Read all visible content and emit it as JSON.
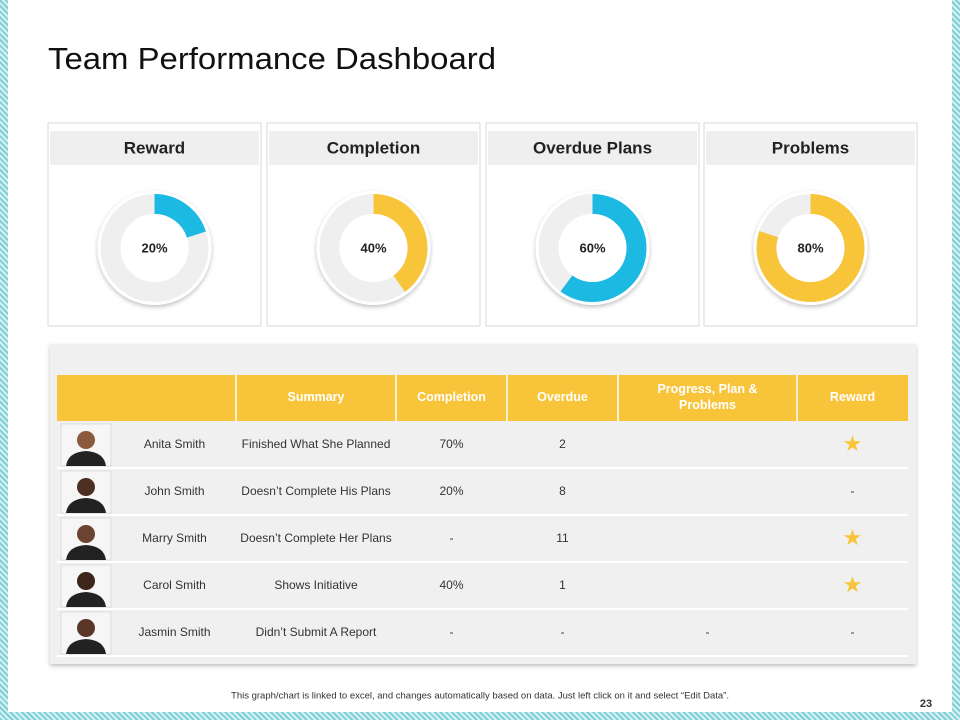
{
  "title": "Team Performance Dashboard",
  "cards": [
    {
      "title": "Reward",
      "value": 20,
      "value_label": "20%",
      "color": "#1cb9e3"
    },
    {
      "title": "Completion",
      "value": 40,
      "value_label": "40%",
      "color": "#f8c43a"
    },
    {
      "title": "Overdue Plans",
      "value": 60,
      "value_label": "60%",
      "color": "#1cb9e3"
    },
    {
      "title": "Problems",
      "value": 80,
      "value_label": "80%",
      "color": "#f8c43a"
    }
  ],
  "table": {
    "headers": [
      "Summary",
      "Completion",
      "Overdue",
      "Progress, Plan & Problems",
      "Reward"
    ],
    "rows": [
      {
        "name": "Anita Smith",
        "summary": "Finished What She Planned",
        "completion": "70%",
        "overdue": "2",
        "reward": "★"
      },
      {
        "name": "John Smith",
        "summary": "Doesn’t Complete His Plans",
        "completion": "20%",
        "overdue": "8",
        "reward": "-"
      },
      {
        "name": "Marry  Smith",
        "summary": "Doesn’t Complete Her Plans",
        "completion": "-",
        "overdue": "11",
        "reward": "★"
      },
      {
        "name": "Carol Smith",
        "summary": "Shows Initiative",
        "completion": "40%",
        "overdue": "1",
        "reward": "★"
      },
      {
        "name": "Jasmin Smith",
        "summary": "Didn’t Submit A Report",
        "completion": "-",
        "overdue": "-",
        "progress": "-",
        "reward": "-"
      }
    ]
  },
  "footer": "This graph/chart is linked to excel, and changes automatically  based on data. Just left click on it and select “Edit Data”.",
  "page_number": "23"
}
